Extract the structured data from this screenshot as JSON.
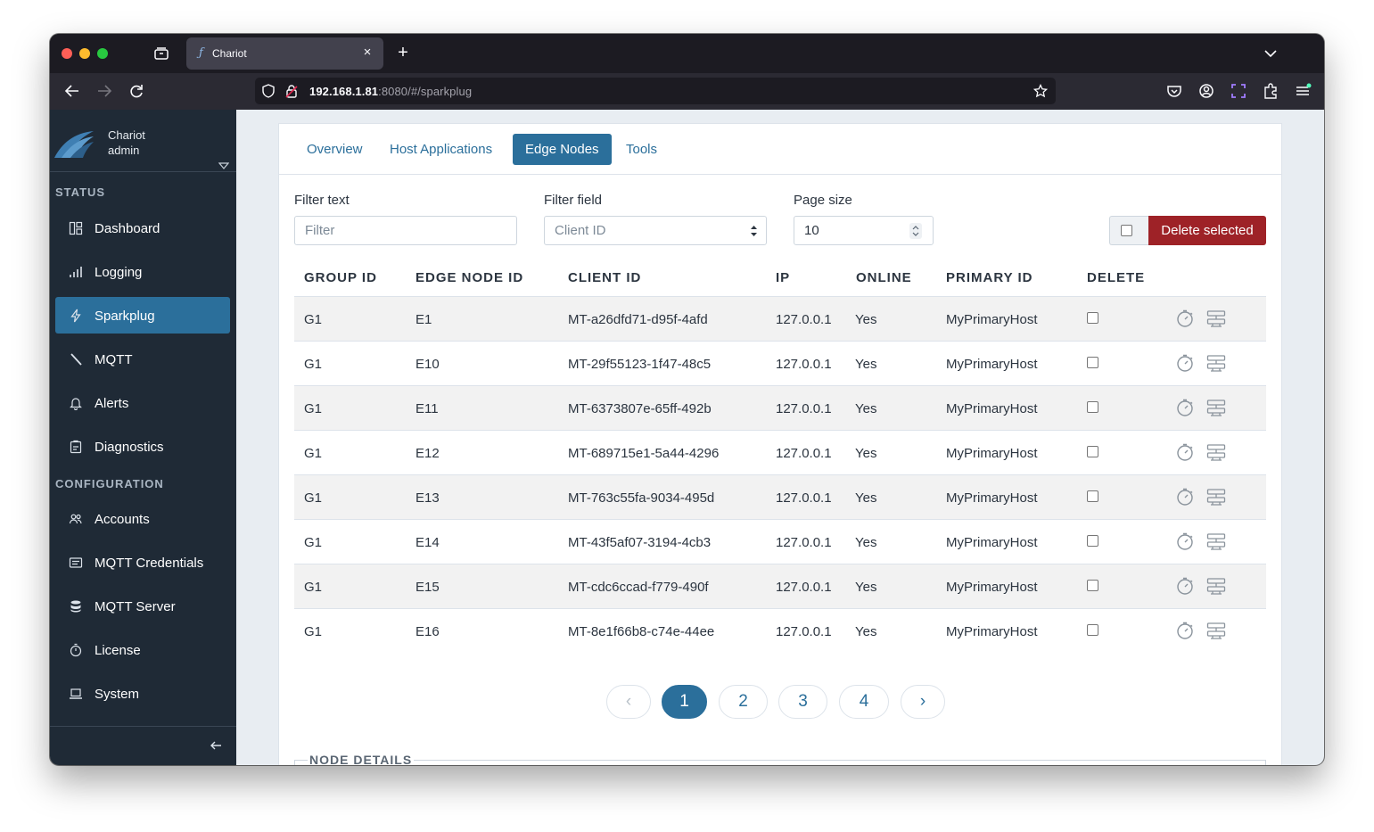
{
  "browser": {
    "tab_title": "Chariot",
    "url_host": "192.168.1.81",
    "url_rest": ":8080/#/sparkplug"
  },
  "brand": {
    "name": "Chariot",
    "user": "admin"
  },
  "sidebar": {
    "status_label": "STATUS",
    "config_label": "CONFIGURATION",
    "status_items": [
      {
        "label": "Dashboard",
        "icon": "dashboard-icon"
      },
      {
        "label": "Logging",
        "icon": "bar-chart-icon"
      },
      {
        "label": "Sparkplug",
        "icon": "lightning-icon",
        "active": true
      },
      {
        "label": "MQTT",
        "icon": "slash-icon"
      },
      {
        "label": "Alerts",
        "icon": "bell-icon"
      },
      {
        "label": "Diagnostics",
        "icon": "clipboard-icon"
      }
    ],
    "config_items": [
      {
        "label": "Accounts",
        "icon": "users-icon"
      },
      {
        "label": "MQTT Credentials",
        "icon": "credential-card-icon"
      },
      {
        "label": "MQTT Server",
        "icon": "database-icon"
      },
      {
        "label": "License",
        "icon": "stopwatch-icon"
      },
      {
        "label": "System",
        "icon": "laptop-icon"
      }
    ]
  },
  "tabs": [
    "Overview",
    "Host Applications",
    "Edge Nodes",
    "Tools"
  ],
  "filters": {
    "filter_text_label": "Filter text",
    "filter_text_placeholder": "Filter",
    "filter_field_label": "Filter field",
    "filter_field_value": "Client ID",
    "page_size_label": "Page size",
    "page_size_value": "10",
    "delete_selected": "Delete selected"
  },
  "table": {
    "headers": [
      "GROUP ID",
      "EDGE NODE ID",
      "CLIENT ID",
      "IP",
      "ONLINE",
      "PRIMARY ID",
      "DELETE"
    ],
    "rows": [
      {
        "group": "G1",
        "edge": "E1",
        "client": "MT-a26dfd71-d95f-4afd",
        "ip": "127.0.0.1",
        "online": "Yes",
        "primary": "MyPrimaryHost"
      },
      {
        "group": "G1",
        "edge": "E10",
        "client": "MT-29f55123-1f47-48c5",
        "ip": "127.0.0.1",
        "online": "Yes",
        "primary": "MyPrimaryHost"
      },
      {
        "group": "G1",
        "edge": "E11",
        "client": "MT-6373807e-65ff-492b",
        "ip": "127.0.0.1",
        "online": "Yes",
        "primary": "MyPrimaryHost"
      },
      {
        "group": "G1",
        "edge": "E12",
        "client": "MT-689715e1-5a44-4296",
        "ip": "127.0.0.1",
        "online": "Yes",
        "primary": "MyPrimaryHost"
      },
      {
        "group": "G1",
        "edge": "E13",
        "client": "MT-763c55fa-9034-495d",
        "ip": "127.0.0.1",
        "online": "Yes",
        "primary": "MyPrimaryHost"
      },
      {
        "group": "G1",
        "edge": "E14",
        "client": "MT-43f5af07-3194-4cb3",
        "ip": "127.0.0.1",
        "online": "Yes",
        "primary": "MyPrimaryHost"
      },
      {
        "group": "G1",
        "edge": "E15",
        "client": "MT-cdc6ccad-f779-490f",
        "ip": "127.0.0.1",
        "online": "Yes",
        "primary": "MyPrimaryHost"
      },
      {
        "group": "G1",
        "edge": "E16",
        "client": "MT-8e1f66b8-c74e-44ee",
        "ip": "127.0.0.1",
        "online": "Yes",
        "primary": "MyPrimaryHost"
      }
    ]
  },
  "pagination": {
    "prev": "‹",
    "pages": [
      "1",
      "2",
      "3",
      "4"
    ],
    "next": "›",
    "current": "1"
  },
  "node_details_label": "NODE DETAILS",
  "colors": {
    "accent": "#2b6f9b",
    "danger": "#9e2227",
    "sidebar": "#1f2a36"
  }
}
